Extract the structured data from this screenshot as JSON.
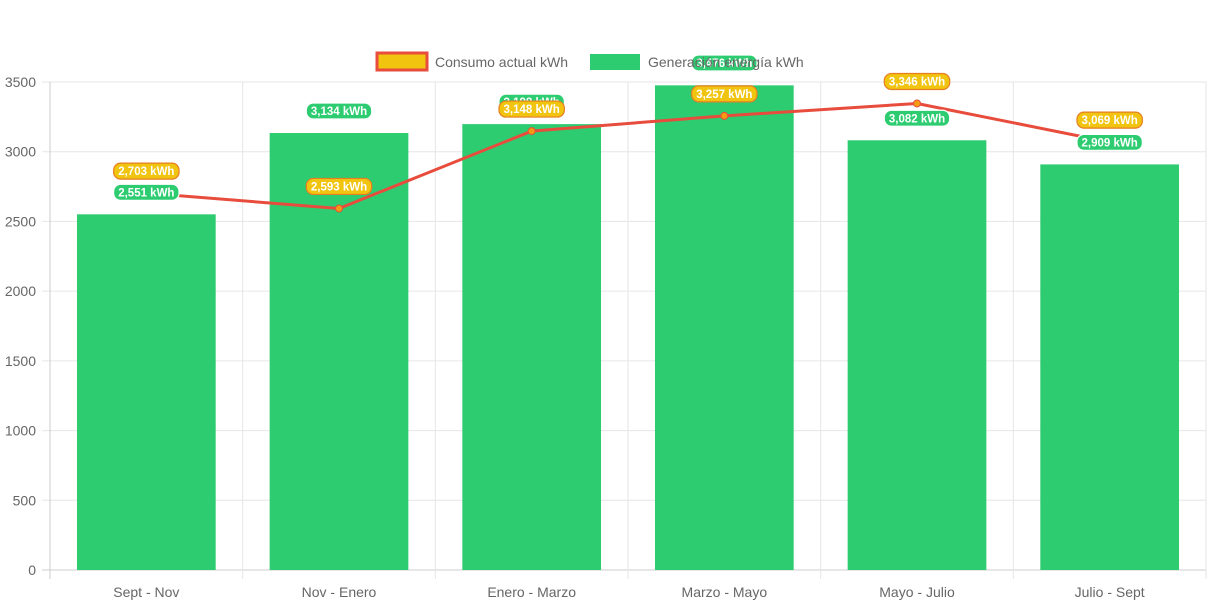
{
  "chart_data": {
    "type": "bar",
    "categories": [
      "Sept - Nov",
      "Nov - Enero",
      "Enero - Marzo",
      "Marzo - Mayo",
      "Mayo - Julio",
      "Julio - Sept"
    ],
    "series": [
      {
        "name": "Consumo actual kWh",
        "type": "line",
        "values": [
          2703,
          2593,
          3148,
          3257,
          3346,
          3069
        ],
        "labels": [
          "2,703 kWh",
          "2,593 kWh",
          "3,148 kWh",
          "3,257 kWh",
          "3,346 kWh",
          "3,069 kWh"
        ],
        "color": "#e74c3c",
        "label_bg": "#f1c40f"
      },
      {
        "name": "Generación energía kWh",
        "type": "bar",
        "values": [
          2551,
          3134,
          3198,
          3476,
          3082,
          2909
        ],
        "labels": [
          "2,551 kWh",
          "3,134 kWh",
          "3,198 kWh",
          "3,476 kWh",
          "3,082 kWh",
          "2,909 kWh"
        ],
        "color": "#2ecc71"
      }
    ],
    "ylim": [
      0,
      3500
    ],
    "yticks": [
      "0",
      "500",
      "1000",
      "1500",
      "2000",
      "2500",
      "3000",
      "3500"
    ],
    "grid": true,
    "legend": "top-center"
  }
}
